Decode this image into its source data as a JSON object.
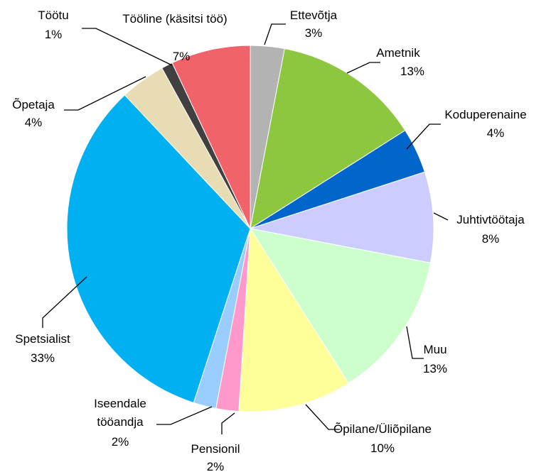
{
  "chart_data": {
    "type": "pie",
    "categories": [
      "Ettevõtja",
      "Ametnik",
      "Koduperenaine",
      "Juhtivtöötaja",
      "Muu",
      "Õpilane/Üliõpilane",
      "Pensionil",
      "Iseendale tööandja",
      "Spetsialist",
      "Õpetaja",
      "Töötu",
      "Tööline (käsitsi töö)"
    ],
    "values": [
      3,
      13,
      4,
      8,
      13,
      10,
      2,
      2,
      33,
      4,
      1,
      7
    ],
    "value_labels": [
      "3%",
      "13%",
      "4%",
      "8%",
      "13%",
      "10%",
      "2%",
      "2%",
      "33%",
      "4%",
      "1%",
      "7%"
    ],
    "colors": [
      "#b3b3b3",
      "#8dc63f",
      "#0066cc",
      "#ccccff",
      "#ccffcc",
      "#ffff99",
      "#ff99cc",
      "#99ccff",
      "#00b0f0",
      "#e8dcb5",
      "#404040",
      "#f0636b"
    ]
  }
}
